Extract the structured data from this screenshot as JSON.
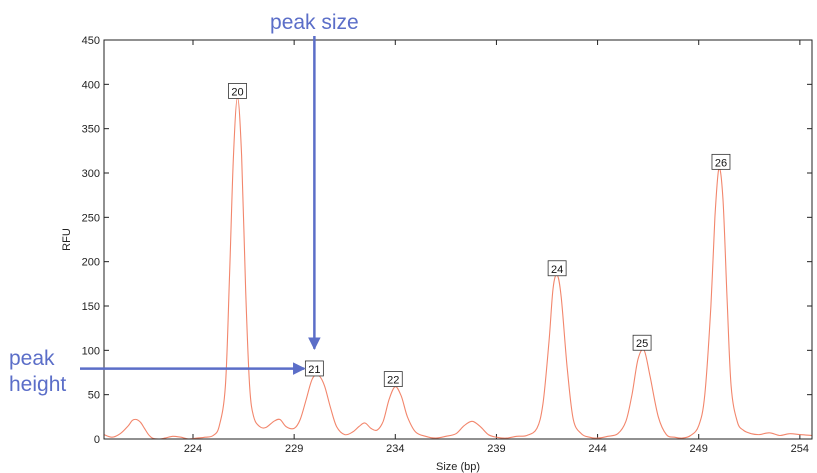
{
  "chart_data": {
    "type": "line",
    "title": "",
    "xlabel": "Size (bp)",
    "ylabel": "RFU",
    "xlim": [
      219.6,
      254.6
    ],
    "ylim": [
      0,
      450
    ],
    "xticks": [
      224,
      229,
      234,
      239,
      244,
      249,
      254
    ],
    "xtick_labels": [
      "224",
      "229",
      "234",
      "239",
      "244",
      "249",
      "254"
    ],
    "yticks": [
      0,
      50,
      100,
      150,
      200,
      250,
      300,
      350,
      400,
      450
    ],
    "ytick_labels": [
      "0",
      "50",
      "100",
      "150",
      "200",
      "250",
      "300",
      "350",
      "400",
      "450"
    ],
    "grid": false,
    "series": [
      {
        "color": "#f2866c",
        "x": [
          219.6,
          220.0,
          220.4,
          220.8,
          221.0,
          221.2,
          221.4,
          221.6,
          221.8,
          222.0,
          222.3,
          222.6,
          223.0,
          223.4,
          223.8,
          224.2,
          224.6,
          225.0,
          225.3,
          225.6,
          225.8,
          226.0,
          226.2,
          226.4,
          226.6,
          226.8,
          227.0,
          227.3,
          227.6,
          228.0,
          228.3,
          228.6,
          229.0,
          229.3,
          229.6,
          229.9,
          230.2,
          230.5,
          230.8,
          231.1,
          231.5,
          231.9,
          232.2,
          232.5,
          232.8,
          233.1,
          233.4,
          233.7,
          234.0,
          234.3,
          234.6,
          235.0,
          235.5,
          236.0,
          236.5,
          237.0,
          237.4,
          237.8,
          238.2,
          238.6,
          239.0,
          239.5,
          240.0,
          240.5,
          241.0,
          241.3,
          241.6,
          241.8,
          242.0,
          242.2,
          242.5,
          242.8,
          243.2,
          243.6,
          244.0,
          244.5,
          245.0,
          245.4,
          245.7,
          246.0,
          246.3,
          246.6,
          247.0,
          247.4,
          247.8,
          248.2,
          248.6,
          249.0,
          249.3,
          249.6,
          249.8,
          250.0,
          250.2,
          250.4,
          250.6,
          250.9,
          251.2,
          251.6,
          252.0,
          252.5,
          253.0,
          253.5,
          254.0,
          254.6
        ],
        "y": [
          5,
          2,
          6,
          15,
          21,
          22,
          19,
          12,
          5,
          1,
          0,
          1,
          3,
          2,
          0,
          1,
          2,
          4,
          15,
          60,
          180,
          320,
          385,
          320,
          170,
          60,
          25,
          14,
          13,
          20,
          22,
          14,
          12,
          22,
          45,
          68,
          72,
          60,
          35,
          14,
          5,
          8,
          14,
          18,
          12,
          10,
          20,
          45,
          59,
          48,
          25,
          8,
          3,
          1,
          3,
          6,
          15,
          20,
          14,
          5,
          2,
          1,
          3,
          4,
          12,
          40,
          110,
          170,
          185,
          160,
          80,
          22,
          6,
          2,
          1,
          3,
          6,
          20,
          50,
          90,
          100,
          70,
          25,
          5,
          2,
          1,
          4,
          15,
          50,
          150,
          250,
          305,
          270,
          160,
          60,
          20,
          10,
          6,
          5,
          7,
          4,
          6,
          5,
          4
        ]
      }
    ],
    "peak_labels": [
      {
        "text": "20",
        "x": 226.2,
        "y": 392
      },
      {
        "text": "21",
        "x": 230.0,
        "y": 79
      },
      {
        "text": "22",
        "x": 233.9,
        "y": 67
      },
      {
        "text": "24",
        "x": 242.0,
        "y": 192
      },
      {
        "text": "25",
        "x": 246.2,
        "y": 108
      },
      {
        "text": "26",
        "x": 250.1,
        "y": 312
      }
    ],
    "annotations": [
      {
        "text": "peak size",
        "color": "#5b6ec8",
        "arrow": "down",
        "target": {
          "x": 230.0,
          "y": 95
        }
      },
      {
        "text_lines": [
          "peak",
          "height"
        ],
        "color": "#5b6ec8",
        "arrow": "right",
        "target": {
          "x": 229.6,
          "y": 80
        }
      }
    ]
  }
}
